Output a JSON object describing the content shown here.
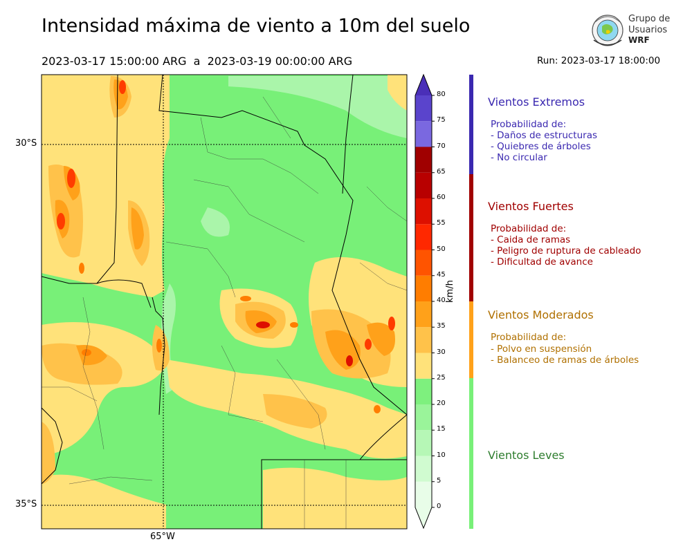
{
  "header": {
    "title": "Intensidad máxima de viento a 10m del suelo",
    "period": "2023-03-17 15:00:00 ARG  a  2023-03-19 00:00:00 ARG",
    "run": "Run: 2023-03-17 18:00:00"
  },
  "logo": {
    "line1": "Grupo de",
    "line2": "Usuarios",
    "line3": "WRF"
  },
  "map": {
    "lat_labels": [
      "30°S",
      "35°S"
    ],
    "lon_labels": [
      "65°W"
    ],
    "background_color": "#78f078",
    "features": [
      {
        "level": 25,
        "color": "#ffe27a"
      },
      {
        "level": 30,
        "color": "#ffc24a"
      },
      {
        "level": 35,
        "color": "#ffa11a"
      },
      {
        "level": 40,
        "color": "#ff7d00"
      },
      {
        "level": 45,
        "color": "#ff3c00"
      },
      {
        "level": 50,
        "color": "#dd1000"
      },
      {
        "level": 55,
        "color": "#b80000"
      },
      {
        "level": 20,
        "color": "#aaf5aa"
      }
    ]
  },
  "colorbar": {
    "units": "km/h",
    "ticks": [
      "0",
      "5",
      "10",
      "15",
      "20",
      "25",
      "30",
      "35",
      "40",
      "45",
      "50",
      "55",
      "60",
      "65",
      "70",
      "75",
      "80"
    ],
    "bands": [
      {
        "from": 0,
        "to": 5,
        "color": "#e8fde8"
      },
      {
        "from": 5,
        "to": 10,
        "color": "#d0fbd0"
      },
      {
        "from": 10,
        "to": 15,
        "color": "#b6f7b6"
      },
      {
        "from": 15,
        "to": 20,
        "color": "#9af49a"
      },
      {
        "from": 20,
        "to": 25,
        "color": "#7ef07e"
      },
      {
        "from": 25,
        "to": 30,
        "color": "#ffe27a"
      },
      {
        "from": 30,
        "to": 35,
        "color": "#ffc24a"
      },
      {
        "from": 35,
        "to": 40,
        "color": "#ffa11a"
      },
      {
        "from": 40,
        "to": 45,
        "color": "#ff7d00"
      },
      {
        "from": 45,
        "to": 50,
        "color": "#ff5400"
      },
      {
        "from": 50,
        "to": 55,
        "color": "#ff2800"
      },
      {
        "from": 55,
        "to": 60,
        "color": "#dd1000"
      },
      {
        "from": 60,
        "to": 65,
        "color": "#b80000"
      },
      {
        "from": 65,
        "to": 70,
        "color": "#a00000"
      },
      {
        "from": 70,
        "to": 75,
        "color": "#7a68e0"
      },
      {
        "from": 75,
        "to": 80,
        "color": "#5a44cc"
      },
      {
        "from": 80,
        "to": 85,
        "color": "#4a2fb8"
      }
    ]
  },
  "legend": {
    "extreme": {
      "title": "Vientos Extremos",
      "line0": "Probabilidad de:",
      "line1": "- Daños de estructuras",
      "line2": "- Quiebres de árboles",
      "line3": "- No circular",
      "color": "#3a28b0"
    },
    "strong": {
      "title": "Vientos Fuertes",
      "line0": "Probabilidad de:",
      "line1": "- Caida de ramas",
      "line2": "- Peligro de ruptura de cableado",
      "line3": "- Dificultad de avance",
      "color": "#a00000"
    },
    "moderate": {
      "title": "Vientos Moderados",
      "line0": "Probabilidad de:",
      "line1": "- Polvo en suspensión",
      "line2": "- Balanceo de ramas de árboles",
      "color": "#b07000"
    },
    "light": {
      "title": "Vientos Leves",
      "color": "#2e7d2e"
    }
  }
}
